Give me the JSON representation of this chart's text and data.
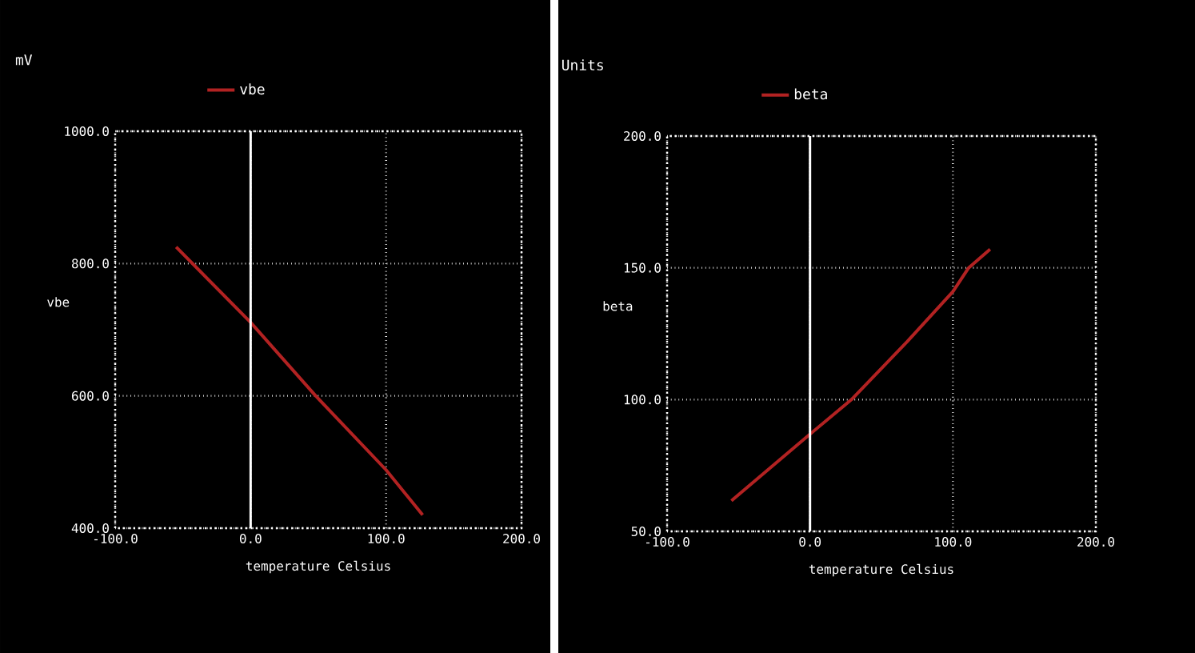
{
  "chart_data": [
    {
      "type": "line",
      "xlabel": "temperature Celsius",
      "ylabel": "vbe",
      "annotations": [
        "mV"
      ],
      "legend": "top",
      "grid": true,
      "series": [
        {
          "name": "vbe",
          "color": "#b22222",
          "x": [
            -55,
            0,
            48,
            100,
            127
          ],
          "values": [
            825,
            711,
            600,
            488,
            420
          ]
        }
      ],
      "xlim": [
        -100,
        200
      ],
      "ylim": [
        400,
        1000
      ],
      "xticks": [
        {
          "value": -100,
          "label": "-100.0"
        },
        {
          "value": 0,
          "label": "0.0"
        },
        {
          "value": 100,
          "label": "100.0"
        },
        {
          "value": 200,
          "label": "200.0"
        }
      ],
      "yticks": [
        {
          "value": 400,
          "label": "400.0"
        },
        {
          "value": 600,
          "label": "600.0"
        },
        {
          "value": 800,
          "label": "800.0"
        },
        {
          "value": 1000,
          "label": "1000.0"
        }
      ],
      "ref_lines": [
        {
          "axis": "x",
          "value": 0,
          "color": "#ffffff"
        }
      ]
    },
    {
      "type": "line",
      "xlabel": "temperature Celsius",
      "ylabel": "beta",
      "annotations": [
        "Units"
      ],
      "legend": "top",
      "grid": true,
      "series": [
        {
          "name": "beta",
          "color": "#b22222",
          "x": [
            -55,
            0,
            29,
            68,
            100,
            111,
            126
          ],
          "values": [
            61.6,
            86.9,
            100,
            122,
            141,
            150,
            157
          ]
        }
      ],
      "xlim": [
        -100,
        200
      ],
      "ylim": [
        50,
        200
      ],
      "xticks": [
        {
          "value": -100,
          "label": "-100.0"
        },
        {
          "value": 0,
          "label": "0.0"
        },
        {
          "value": 100,
          "label": "100.0"
        },
        {
          "value": 200,
          "label": "200.0"
        }
      ],
      "yticks": [
        {
          "value": 50,
          "label": "50.0"
        },
        {
          "value": 100,
          "label": "100.0"
        },
        {
          "value": 150,
          "label": "150.0"
        },
        {
          "value": 200,
          "label": "200.0"
        }
      ],
      "ref_lines": [
        {
          "axis": "x",
          "value": 0,
          "color": "#ffffff"
        }
      ]
    }
  ]
}
